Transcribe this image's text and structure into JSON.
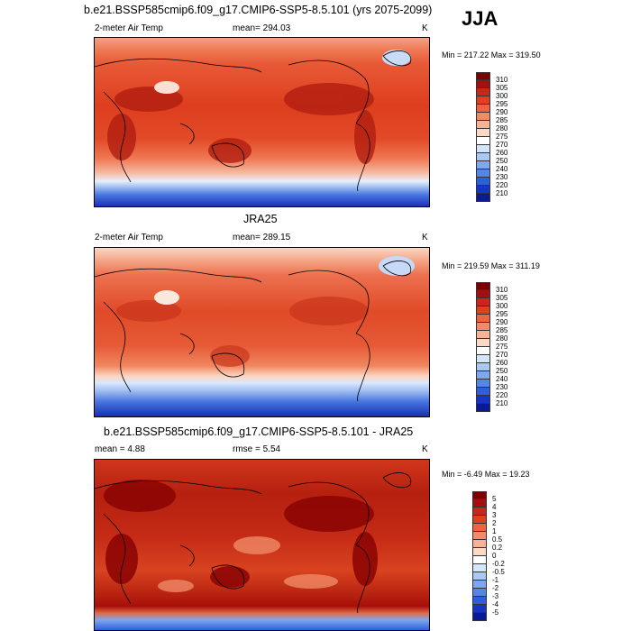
{
  "season": "JJA",
  "panels": [
    {
      "title": "b.e21.BSSP585cmip6.f09_g17.CMIP6-SSP5-8.5.101 (yrs 2075-2099)",
      "variable": "2-meter Air Temp",
      "stat_text": "mean= 294.03",
      "units": "K",
      "minmax": "Min = 217.22 Max = 319.50",
      "levels": [
        "310",
        "305",
        "300",
        "295",
        "290",
        "285",
        "280",
        "275",
        "270",
        "260",
        "250",
        "240",
        "230",
        "220",
        "210"
      ],
      "palette": [
        "#7f0000",
        "#a50f0f",
        "#c8281c",
        "#e0401f",
        "#ef6340",
        "#f58a68",
        "#f9b296",
        "#fcd9c4",
        "#ffffff",
        "#d4e6fb",
        "#aac8f5",
        "#7ea8ee",
        "#5585e6",
        "#2d5fdd",
        "#1435c8",
        "#0a1a96"
      ]
    },
    {
      "title": "JRA25",
      "variable": "2-meter Air Temp",
      "stat_text": "mean= 289.15",
      "units": "K",
      "minmax": "Min = 219.59 Max = 311.19",
      "levels": [
        "310",
        "305",
        "300",
        "295",
        "290",
        "285",
        "280",
        "275",
        "270",
        "260",
        "250",
        "240",
        "230",
        "220",
        "210"
      ],
      "palette": [
        "#7f0000",
        "#a50f0f",
        "#c8281c",
        "#e0401f",
        "#ef6340",
        "#f58a68",
        "#f9b296",
        "#fcd9c4",
        "#ffffff",
        "#d4e6fb",
        "#aac8f5",
        "#7ea8ee",
        "#5585e6",
        "#2d5fdd",
        "#1435c8",
        "#0a1a96"
      ]
    },
    {
      "title": "b.e21.BSSP585cmip6.f09_g17.CMIP6-SSP5-8.5.101 - JRA25",
      "mean_text": "mean =   4.88",
      "rmse_text": "rmse =   5.54",
      "units": "K",
      "minmax": "Min =  -6.49 Max =  19.23",
      "levels": [
        "5",
        "4",
        "3",
        "2",
        "1",
        "0.5",
        "0.2",
        "0",
        "-0.2",
        "-0.5",
        "-1",
        "-2",
        "-3",
        "-4",
        "-5"
      ],
      "palette": [
        "#7f0000",
        "#a50f0f",
        "#c8281c",
        "#e0401f",
        "#ef6340",
        "#f58a68",
        "#f9b296",
        "#fcd9c4",
        "#ffffff",
        "#d4e6fb",
        "#aac8f5",
        "#7ea8ee",
        "#5585e6",
        "#2d5fdd",
        "#1435c8",
        "#0a1a96"
      ]
    }
  ]
}
